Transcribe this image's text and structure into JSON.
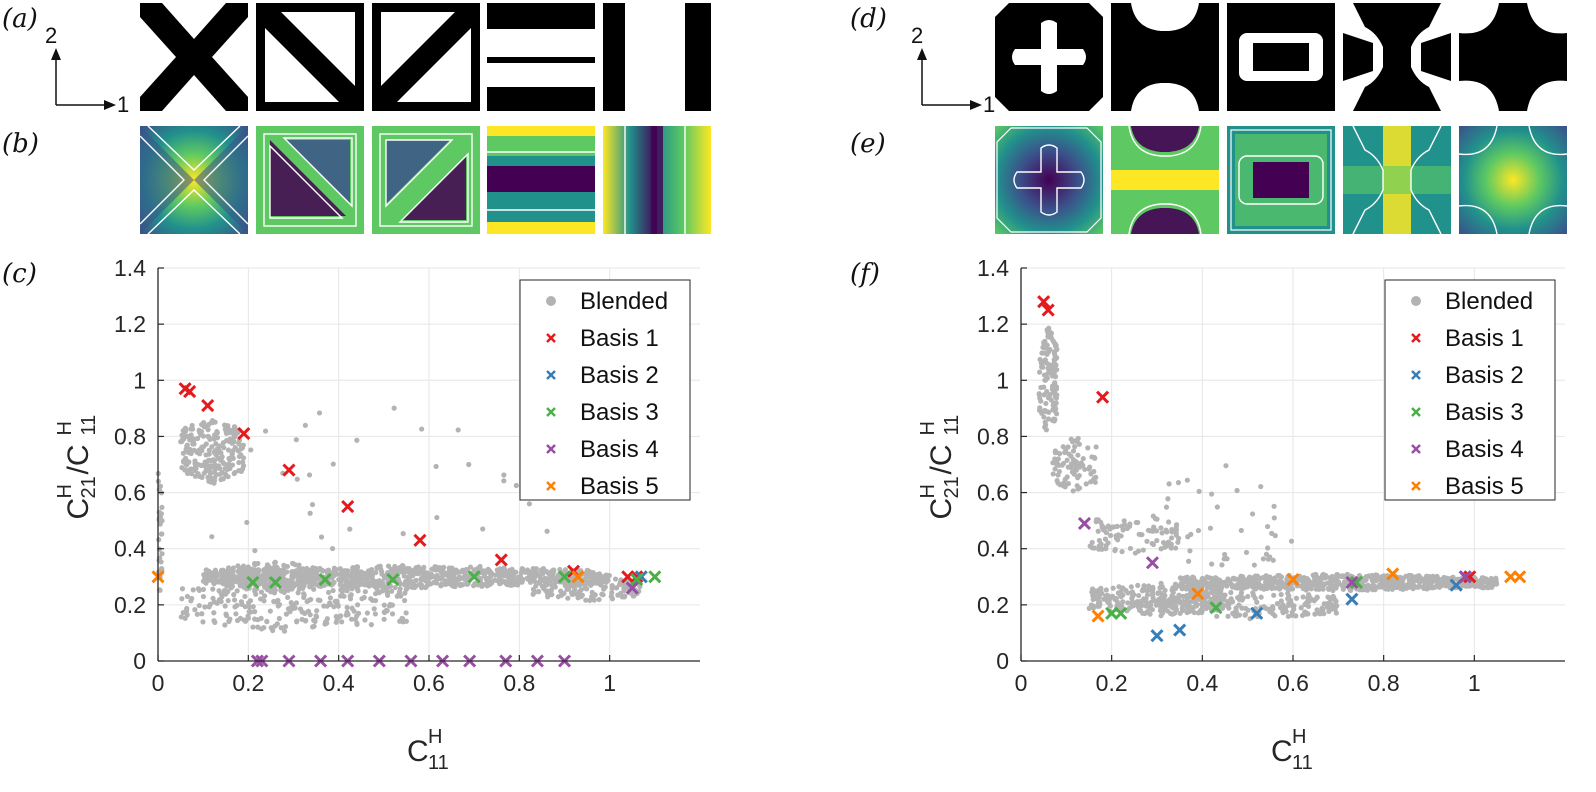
{
  "panel_labels": {
    "a": "(a)",
    "b": "(b)",
    "c": "(c)",
    "d": "(d)",
    "e": "(e)",
    "f": "(f)"
  },
  "axes_indicator": {
    "vertical": "2",
    "horizontal": "1"
  },
  "colors": {
    "blended": "#b3b3b3",
    "basis1": "#e41a1c",
    "basis2": "#377eb8",
    "basis3": "#4daf4a",
    "basis4": "#984ea3",
    "basis5": "#ff7f00",
    "grid": "#e6e6e6",
    "axis": "#262626"
  },
  "chart_data": [
    {
      "type": "scatter",
      "panel": "c",
      "xlabel": "C",
      "xlabel_sup": "H",
      "xlabel_sub": "11",
      "ylabel": "C^H_21/C^H_11",
      "xlim": [
        0,
        1.2
      ],
      "ylim": [
        0,
        1.4
      ],
      "xticks": [
        "0",
        "0.2",
        "0.4",
        "0.6",
        "0.8",
        "1"
      ],
      "yticks": [
        "0",
        "0.2",
        "0.4",
        "0.6",
        "0.8",
        "1",
        "1.2",
        "1.4"
      ],
      "grid": true,
      "legend_position": "top-right",
      "series": [
        {
          "name": "Blended",
          "marker": "dot",
          "seed": 7,
          "clusters": [
            [
              0.55,
              0.3,
              0.45,
              0.04,
              900
            ],
            [
              0.25,
              0.3,
              0.1,
              0.06,
              150
            ],
            [
              0.12,
              0.75,
              0.07,
              0.12,
              220
            ],
            [
              0.3,
              0.2,
              0.25,
              0.1,
              260
            ],
            [
              0.0,
              0.45,
              0.01,
              0.25,
              60
            ],
            [
              0.95,
              0.26,
              0.12,
              0.05,
              140
            ],
            [
              0.5,
              0.6,
              0.4,
              0.35,
              40
            ]
          ]
        },
        {
          "name": "Basis 1",
          "marker": "x",
          "points": [
            [
              0.06,
              0.97
            ],
            [
              0.07,
              0.96
            ],
            [
              0.11,
              0.91
            ],
            [
              0.19,
              0.81
            ],
            [
              0.29,
              0.68
            ],
            [
              0.42,
              0.55
            ],
            [
              0.58,
              0.43
            ],
            [
              0.76,
              0.36
            ],
            [
              0.92,
              0.32
            ],
            [
              1.04,
              0.3
            ],
            [
              1.06,
              0.3
            ]
          ]
        },
        {
          "name": "Basis 2",
          "marker": "x",
          "points": [
            [
              1.07,
              0.3
            ]
          ]
        },
        {
          "name": "Basis 3",
          "marker": "x",
          "points": [
            [
              0.21,
              0.28
            ],
            [
              0.26,
              0.28
            ],
            [
              0.37,
              0.29
            ],
            [
              0.52,
              0.29
            ],
            [
              0.7,
              0.3
            ],
            [
              0.9,
              0.3
            ],
            [
              1.06,
              0.29
            ],
            [
              1.1,
              0.3
            ]
          ]
        },
        {
          "name": "Basis 4",
          "marker": "x",
          "points": [
            [
              0.22,
              0
            ],
            [
              0.23,
              0
            ],
            [
              0.29,
              0
            ],
            [
              0.36,
              0
            ],
            [
              0.42,
              0
            ],
            [
              0.49,
              0
            ],
            [
              0.56,
              0
            ],
            [
              0.63,
              0
            ],
            [
              0.69,
              0
            ],
            [
              0.77,
              0
            ],
            [
              0.84,
              0
            ],
            [
              0.9,
              0
            ],
            [
              1.05,
              0.26
            ]
          ]
        },
        {
          "name": "Basis 5",
          "marker": "x",
          "points": [
            [
              0.0,
              0.3
            ],
            [
              0.93,
              0.3
            ]
          ]
        }
      ]
    },
    {
      "type": "scatter",
      "panel": "f",
      "xlabel": "C",
      "xlabel_sup": "H",
      "xlabel_sub": "11",
      "ylabel": "C^H_21/C^H_11",
      "xlim": [
        0,
        1.2
      ],
      "ylim": [
        0,
        1.4
      ],
      "xticks": [
        "0",
        "0.2",
        "0.4",
        "0.6",
        "0.8",
        "1"
      ],
      "yticks": [
        "0",
        "0.2",
        "0.4",
        "0.6",
        "0.8",
        "1",
        "1.2",
        "1.4"
      ],
      "grid": true,
      "legend_position": "top-right",
      "series": [
        {
          "name": "Blended",
          "marker": "dot",
          "seed": 13,
          "clusters": [
            [
              0.7,
              0.28,
              0.35,
              0.03,
              700
            ],
            [
              0.06,
              1.0,
              0.02,
              0.2,
              120
            ],
            [
              0.12,
              0.7,
              0.05,
              0.1,
              80
            ],
            [
              0.3,
              0.22,
              0.15,
              0.06,
              260
            ],
            [
              0.25,
              0.45,
              0.1,
              0.08,
              90
            ],
            [
              0.5,
              0.2,
              0.2,
              0.05,
              200
            ],
            [
              0.45,
              0.5,
              0.15,
              0.2,
              40
            ]
          ]
        },
        {
          "name": "Basis 1",
          "marker": "x",
          "points": [
            [
              0.05,
              1.28
            ],
            [
              0.06,
              1.25
            ],
            [
              0.18,
              0.94
            ],
            [
              0.99,
              0.3
            ]
          ]
        },
        {
          "name": "Basis 2",
          "marker": "x",
          "points": [
            [
              0.3,
              0.09
            ],
            [
              0.35,
              0.11
            ],
            [
              0.52,
              0.17
            ],
            [
              0.73,
              0.22
            ],
            [
              0.96,
              0.27
            ],
            [
              0.98,
              0.3
            ]
          ]
        },
        {
          "name": "Basis 3",
          "marker": "x",
          "points": [
            [
              0.2,
              0.17
            ],
            [
              0.22,
              0.17
            ],
            [
              0.43,
              0.19
            ],
            [
              0.74,
              0.28
            ]
          ]
        },
        {
          "name": "Basis 4",
          "marker": "x",
          "points": [
            [
              0.14,
              0.49
            ],
            [
              0.29,
              0.35
            ],
            [
              0.73,
              0.28
            ],
            [
              0.98,
              0.3
            ]
          ]
        },
        {
          "name": "Basis 5",
          "marker": "x",
          "points": [
            [
              0.17,
              0.16
            ],
            [
              0.39,
              0.24
            ],
            [
              0.6,
              0.29
            ],
            [
              0.82,
              0.31
            ],
            [
              1.08,
              0.3
            ],
            [
              1.1,
              0.3
            ]
          ]
        }
      ]
    }
  ]
}
